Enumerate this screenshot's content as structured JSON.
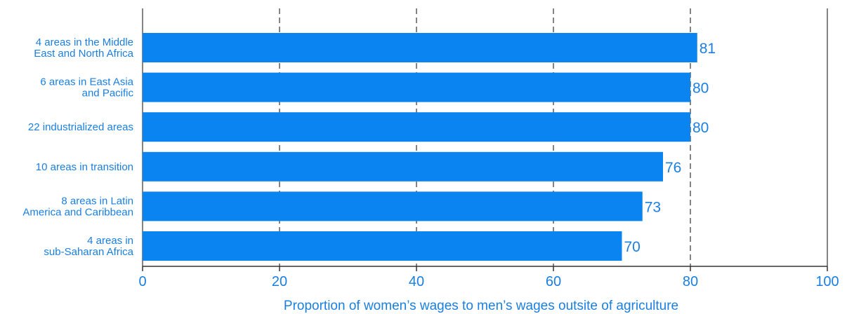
{
  "colors": {
    "bar": "#0a84f0",
    "text": "#1a7fe0",
    "axis": "#333333",
    "grid": "#333333"
  },
  "chart_data": {
    "type": "bar",
    "orientation": "horizontal",
    "title": "",
    "xlabel": "Proportion of women’s wages to men’s wages outsite of agriculture",
    "ylabel": "",
    "xlim": [
      0,
      100
    ],
    "xticks": [
      "0",
      "20",
      "40",
      "60",
      "80",
      "100"
    ],
    "grid": "vertical dashed",
    "categories": [
      [
        "4 areas in the Middle",
        "East and North Africa"
      ],
      [
        "6 areas in East Asia",
        "and Pacific"
      ],
      [
        "22 industrialized areas"
      ],
      [
        "10 areas in transition"
      ],
      [
        "8 areas in Latin",
        "America and Caribbean"
      ],
      [
        "4 areas in",
        "sub-Saharan Africa"
      ]
    ],
    "values": [
      81,
      80,
      80,
      76,
      73,
      70
    ],
    "value_labels": [
      "81",
      "80",
      "80",
      "76",
      "73",
      "70"
    ]
  }
}
